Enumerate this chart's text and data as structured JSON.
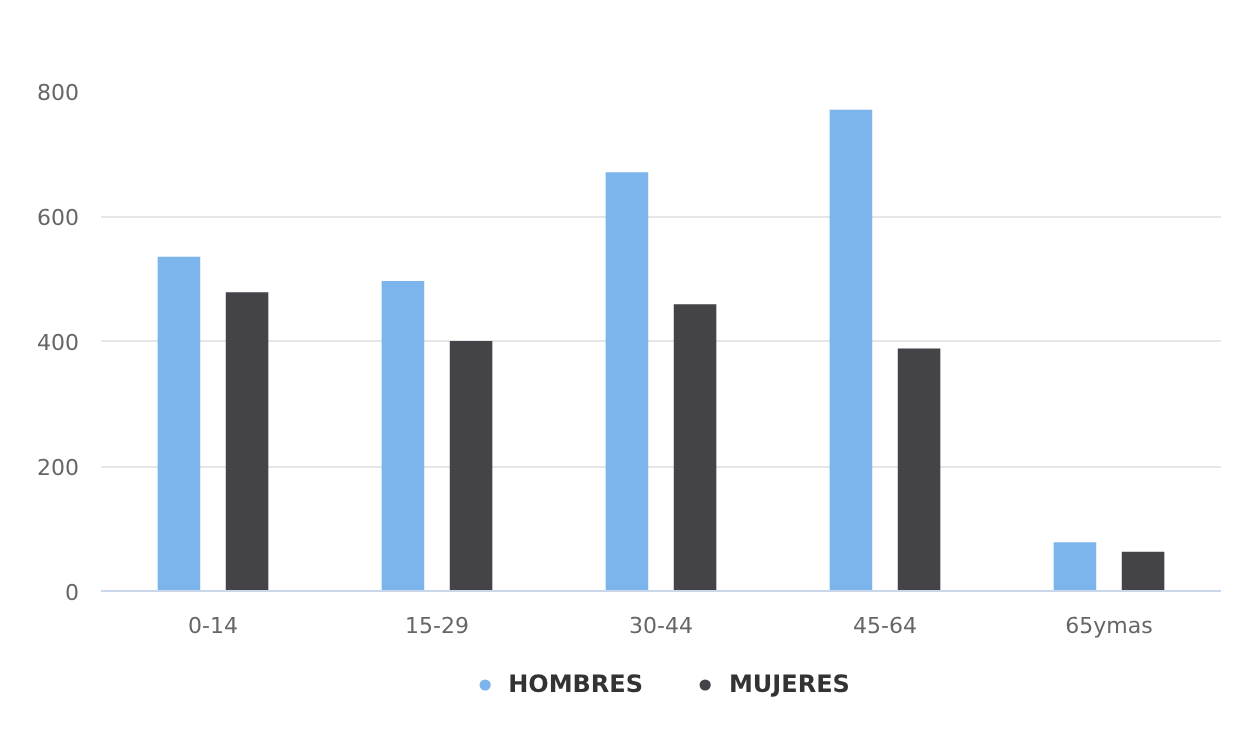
{
  "chart_data": {
    "type": "bar",
    "categories": [
      "0-14",
      "15-29",
      "30-44",
      "45-64",
      "65ymas"
    ],
    "series": [
      {
        "name": "HOMBRES",
        "color": "#7cb5ec",
        "values": [
          535,
          496,
          670,
          770,
          78
        ]
      },
      {
        "name": "MUJERES",
        "color": "#434348",
        "values": [
          478,
          400,
          459,
          388,
          63
        ]
      }
    ],
    "ylim": [
      0,
      800
    ],
    "yticks": [
      0,
      200,
      400,
      600,
      800
    ],
    "grid": "y",
    "legend": "bottom"
  }
}
